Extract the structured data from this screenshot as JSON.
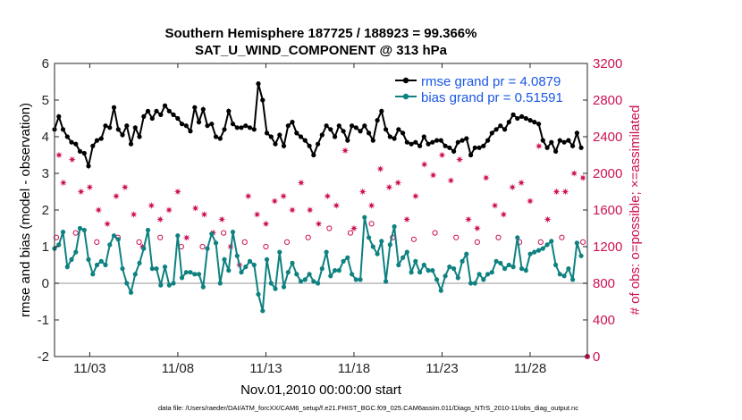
{
  "chart_data": {
    "type": "line",
    "title_line1": "Southern Hemisphere 187725 / 188923 = 99.366%",
    "title_line2": "SAT_U_WIND_COMPONENT @ 313 hPa",
    "xlabel": "Nov.01,2010 00:00:00 start",
    "ylabel_left": "rmse and bias (model - observation)",
    "ylabel_right": "# of obs: o=possible; ×=assimilated",
    "footnote": "data file: /Users/raeder/DAI/ATM_forcXX/CAM6_setup/f.e21.FHIST_BGC.f09_025.CAM6assim.011/Diags_NTrS_2010-11/obs_diag_output.nc",
    "xlim": [
      1.0,
      31.25
    ],
    "ylim_left": [
      -2,
      6
    ],
    "ylim_right": [
      0,
      3200
    ],
    "x_ticks": [
      3,
      8,
      13,
      18,
      23,
      28
    ],
    "x_tick_labels": [
      "11/03",
      "11/08",
      "11/13",
      "11/18",
      "11/23",
      "11/28"
    ],
    "y_left_ticks": [
      -2,
      -1,
      0,
      1,
      2,
      3,
      4,
      5,
      6
    ],
    "y_left_tick_labels": [
      "-2",
      "-1",
      "0",
      "1",
      "2",
      "3",
      "4",
      "5",
      "6"
    ],
    "y_right_ticks": [
      0,
      400,
      800,
      1200,
      1600,
      2000,
      2400,
      2800,
      3200
    ],
    "y_right_tick_labels": [
      "0",
      "400",
      "800",
      "1200",
      "1600",
      "2000",
      "2400",
      "2800",
      "3200"
    ],
    "legend_position": "top-right",
    "colors": {
      "rmse": "#000000",
      "bias": "#0e8180",
      "obs": "#cc1155",
      "zero_line": "#b8b8b8"
    },
    "series": [
      {
        "name": "rmse grand pr = 4.0879",
        "color": "#000000",
        "values": [
          4.2,
          4.55,
          4.2,
          4.0,
          3.85,
          3.8,
          3.6,
          3.55,
          3.2,
          3.75,
          3.9,
          3.95,
          4.3,
          4.25,
          4.8,
          4.2,
          4.05,
          4.3,
          3.8,
          4.25,
          4.0,
          4.55,
          4.7,
          4.5,
          4.7,
          4.6,
          4.85,
          4.7,
          4.6,
          4.5,
          4.35,
          4.3,
          4.15,
          4.8,
          4.4,
          4.75,
          4.3,
          4.35,
          4.0,
          3.95,
          4.2,
          4.7,
          4.35,
          4.25,
          4.25,
          4.3,
          4.25,
          4.2,
          5.45,
          5.0,
          4.1,
          4.0,
          3.8,
          4.05,
          3.75,
          4.3,
          4.4,
          4.1,
          4.0,
          3.9,
          3.75,
          3.5,
          3.8,
          4.05,
          4.3,
          4.2,
          4.0,
          4.3,
          4.15,
          3.9,
          4.3,
          4.25,
          4.15,
          4.3,
          4.1,
          3.9,
          4.45,
          4.7,
          4.2,
          4.0,
          3.95,
          4.2,
          4.1,
          3.85,
          3.8,
          3.85,
          3.75,
          4.0,
          3.8,
          3.85,
          3.9,
          3.9,
          3.75,
          3.7,
          3.6,
          3.85,
          3.9,
          3.95,
          3.5,
          3.7,
          3.7,
          3.75,
          3.9,
          4.1,
          4.2,
          4.3,
          4.2,
          4.4,
          4.6,
          4.5,
          4.55,
          4.5,
          4.45,
          4.4,
          4.35,
          3.9,
          3.7,
          3.85,
          3.6,
          3.9,
          3.85,
          3.9,
          3.75,
          4.1,
          3.7
        ]
      },
      {
        "name": "bias grand pr = 0.51591",
        "color": "#0e8180",
        "values": [
          0.95,
          1.05,
          1.4,
          0.45,
          0.65,
          0.85,
          1.5,
          1.45,
          0.65,
          0.25,
          0.5,
          0.6,
          0.5,
          1.05,
          1.3,
          1.2,
          0.4,
          0.0,
          -0.25,
          0.25,
          0.55,
          0.95,
          1.45,
          0.4,
          0.4,
          -0.05,
          0.45,
          -0.05,
          0.0,
          1.3,
          0.15,
          0.3,
          0.3,
          0.25,
          0.25,
          -0.1,
          0.95,
          1.35,
          1.1,
          0.0,
          0.65,
          0.35,
          1.4,
          0.75,
          0.3,
          0.45,
          0.6,
          0.5,
          -0.3,
          -0.75,
          0.65,
          0.0,
          -0.15,
          0.85,
          -0.1,
          0.3,
          0.55,
          0.25,
          0.05,
          0.1,
          0.25,
          0.05,
          0.0,
          0.4,
          0.85,
          0.2,
          0.35,
          0.35,
          0.6,
          0.7,
          0.25,
          0.1,
          0.1,
          1.8,
          1.25,
          1.0,
          0.8,
          1.15,
          0.05,
          1.05,
          1.55,
          0.5,
          0.7,
          0.85,
          0.3,
          0.6,
          0.3,
          0.5,
          0.35,
          0.35,
          0.1,
          -0.2,
          0.2,
          0.45,
          0.4,
          0.15,
          0.6,
          0.8,
          0.0,
          0.0,
          0.25,
          0.1,
          0.25,
          0.3,
          0.6,
          0.55,
          0.4,
          0.5,
          0.45,
          1.25,
          0.4,
          0.35,
          0.8,
          0.85,
          0.9,
          0.95,
          1.05,
          1.15,
          0.5,
          0.25,
          0.2,
          0.4,
          0.1,
          1.1,
          0.75
        ]
      }
    ],
    "obs_assimilated": {
      "name": "assimilated",
      "marker": "×",
      "color": "#cc1155",
      "x": [
        1.25,
        1.5,
        2.0,
        2.5,
        3.0,
        3.5,
        4.0,
        4.5,
        5.0,
        5.5,
        6.0,
        6.5,
        7.0,
        7.5,
        8.0,
        8.5,
        9.0,
        9.5,
        10.0,
        10.5,
        11.0,
        11.5,
        12.0,
        12.5,
        13.0,
        13.5,
        14.0,
        14.5,
        15.0,
        15.5,
        16.0,
        16.5,
        17.0,
        17.5,
        18.0,
        18.5,
        19.0,
        19.5,
        20.0,
        20.5,
        21.0,
        21.5,
        22.0,
        22.5,
        23.0,
        23.5,
        24.0,
        24.5,
        25.0,
        25.5,
        26.0,
        26.5,
        27.0,
        27.5,
        28.0,
        28.5,
        29.0,
        29.5,
        30.0,
        30.5,
        31.0
      ],
      "values": [
        2200,
        1900,
        2150,
        1800,
        1850,
        1600,
        1450,
        1750,
        1850,
        1550,
        1200,
        1650,
        1500,
        1600,
        1800,
        1300,
        1620,
        1550,
        1350,
        1500,
        1200,
        1000,
        1750,
        1550,
        1450,
        1700,
        1750,
        1600,
        1900,
        1600,
        1450,
        1750,
        1650,
        2250,
        1400,
        1800,
        1650,
        2050,
        1850,
        1900,
        1500,
        1750,
        2100,
        1980,
        2200,
        1920,
        2150,
        1500,
        1400,
        1950,
        1650,
        1550,
        1850,
        1900,
        1700,
        2300,
        1500,
        1800,
        1800,
        2000,
        1950
      ]
    },
    "obs_possible": {
      "name": "possible",
      "marker": "o",
      "color": "#cc1155",
      "x": [
        1.1,
        2.2,
        3.4,
        4.6,
        5.8,
        7.0,
        8.2,
        9.4,
        10.6,
        11.8,
        13.0,
        14.2,
        15.4,
        16.6,
        17.8,
        19.0,
        20.2,
        21.4,
        22.6,
        23.8,
        25.0,
        26.2,
        27.4,
        28.6,
        29.8,
        31.0
      ],
      "values": [
        1300,
        1350,
        1250,
        1300,
        1250,
        1300,
        1200,
        1200,
        1350,
        1250,
        1200,
        1250,
        1300,
        1400,
        1350,
        1450,
        1300,
        1280,
        1350,
        1300,
        1250,
        1300,
        1250,
        1250,
        1300,
        1250
      ]
    },
    "legend": [
      "rmse grand pr = 4.0879",
      "bias grand pr = 0.51591"
    ]
  }
}
